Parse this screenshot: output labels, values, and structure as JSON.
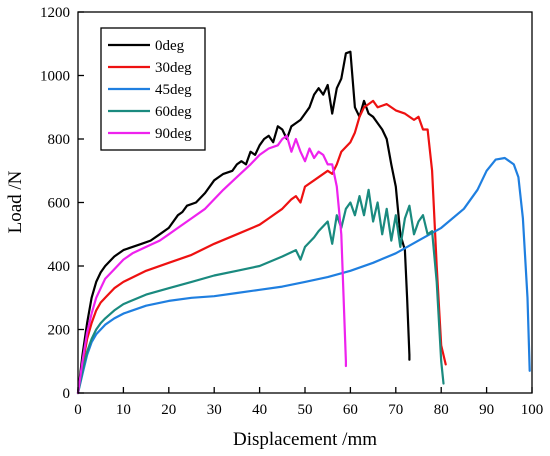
{
  "chart_data": {
    "type": "line",
    "xlabel": "Displacement /mm",
    "ylabel": "Load /N",
    "xlim": [
      0,
      100
    ],
    "ylim": [
      0,
      1200
    ],
    "xticks": [
      "0",
      "10",
      "20",
      "30",
      "40",
      "50",
      "60",
      "70",
      "80",
      "90",
      "100"
    ],
    "yticks": [
      "0",
      "200",
      "400",
      "600",
      "800",
      "1000",
      "1200"
    ],
    "grid": false,
    "legend_position": "top-left",
    "series": [
      {
        "name": "0deg",
        "color": "#000000",
        "points": [
          [
            0,
            0
          ],
          [
            1,
            120
          ],
          [
            2,
            220
          ],
          [
            3,
            300
          ],
          [
            4,
            350
          ],
          [
            5,
            380
          ],
          [
            6,
            400
          ],
          [
            8,
            430
          ],
          [
            10,
            450
          ],
          [
            12,
            460
          ],
          [
            14,
            470
          ],
          [
            16,
            480
          ],
          [
            18,
            500
          ],
          [
            20,
            520
          ],
          [
            22,
            560
          ],
          [
            23,
            570
          ],
          [
            24,
            590
          ],
          [
            26,
            600
          ],
          [
            28,
            630
          ],
          [
            30,
            670
          ],
          [
            31,
            680
          ],
          [
            32,
            690
          ],
          [
            34,
            700
          ],
          [
            35,
            720
          ],
          [
            36,
            730
          ],
          [
            37,
            720
          ],
          [
            38,
            760
          ],
          [
            39,
            750
          ],
          [
            40,
            780
          ],
          [
            41,
            800
          ],
          [
            42,
            810
          ],
          [
            43,
            790
          ],
          [
            44,
            840
          ],
          [
            45,
            830
          ],
          [
            46,
            800
          ],
          [
            47,
            840
          ],
          [
            48,
            850
          ],
          [
            49,
            860
          ],
          [
            50,
            880
          ],
          [
            51,
            900
          ],
          [
            52,
            940
          ],
          [
            53,
            960
          ],
          [
            54,
            940
          ],
          [
            55,
            970
          ],
          [
            56,
            880
          ],
          [
            57,
            960
          ],
          [
            58,
            990
          ],
          [
            59,
            1070
          ],
          [
            60,
            1075
          ],
          [
            61,
            900
          ],
          [
            62,
            870
          ],
          [
            63,
            920
          ],
          [
            64,
            880
          ],
          [
            65,
            870
          ],
          [
            66,
            850
          ],
          [
            67,
            830
          ],
          [
            68,
            800
          ],
          [
            69,
            720
          ],
          [
            70,
            650
          ],
          [
            71,
            500
          ],
          [
            72,
            450
          ],
          [
            72.5,
            300
          ],
          [
            73,
            120
          ],
          [
            73,
            105
          ]
        ]
      },
      {
        "name": "30deg",
        "color": "#ee1111",
        "points": [
          [
            0,
            0
          ],
          [
            1,
            90
          ],
          [
            2,
            170
          ],
          [
            3,
            220
          ],
          [
            4,
            260
          ],
          [
            5,
            285
          ],
          [
            6,
            300
          ],
          [
            8,
            330
          ],
          [
            10,
            350
          ],
          [
            15,
            385
          ],
          [
            20,
            410
          ],
          [
            25,
            435
          ],
          [
            30,
            470
          ],
          [
            35,
            500
          ],
          [
            40,
            530
          ],
          [
            42,
            550
          ],
          [
            45,
            580
          ],
          [
            47,
            610
          ],
          [
            48,
            620
          ],
          [
            49,
            600
          ],
          [
            50,
            650
          ],
          [
            52,
            670
          ],
          [
            55,
            700
          ],
          [
            56,
            690
          ],
          [
            57,
            720
          ],
          [
            58,
            760
          ],
          [
            60,
            790
          ],
          [
            61,
            820
          ],
          [
            62,
            870
          ],
          [
            63,
            900
          ],
          [
            64,
            910
          ],
          [
            65,
            920
          ],
          [
            66,
            900
          ],
          [
            68,
            910
          ],
          [
            70,
            890
          ],
          [
            72,
            880
          ],
          [
            74,
            860
          ],
          [
            75,
            870
          ],
          [
            76,
            830
          ],
          [
            77,
            830
          ],
          [
            78,
            700
          ],
          [
            79,
            400
          ],
          [
            80,
            150
          ],
          [
            81,
            90
          ]
        ]
      },
      {
        "name": "45deg",
        "color": "#1f7fe0",
        "points": [
          [
            0,
            0
          ],
          [
            1,
            60
          ],
          [
            2,
            120
          ],
          [
            3,
            160
          ],
          [
            4,
            185
          ],
          [
            5,
            200
          ],
          [
            6,
            215
          ],
          [
            8,
            235
          ],
          [
            10,
            250
          ],
          [
            15,
            275
          ],
          [
            20,
            290
          ],
          [
            25,
            300
          ],
          [
            30,
            305
          ],
          [
            35,
            315
          ],
          [
            40,
            325
          ],
          [
            45,
            335
          ],
          [
            50,
            350
          ],
          [
            55,
            365
          ],
          [
            60,
            385
          ],
          [
            65,
            410
          ],
          [
            70,
            440
          ],
          [
            75,
            480
          ],
          [
            80,
            520
          ],
          [
            85,
            580
          ],
          [
            88,
            640
          ],
          [
            90,
            700
          ],
          [
            92,
            735
          ],
          [
            94,
            740
          ],
          [
            96,
            720
          ],
          [
            97,
            680
          ],
          [
            98,
            550
          ],
          [
            99,
            300
          ],
          [
            99.5,
            70
          ]
        ]
      },
      {
        "name": "60deg",
        "color": "#1a8a7f",
        "points": [
          [
            0,
            0
          ],
          [
            1,
            70
          ],
          [
            2,
            130
          ],
          [
            3,
            170
          ],
          [
            4,
            200
          ],
          [
            5,
            220
          ],
          [
            6,
            235
          ],
          [
            8,
            260
          ],
          [
            10,
            280
          ],
          [
            15,
            310
          ],
          [
            20,
            330
          ],
          [
            25,
            350
          ],
          [
            30,
            370
          ],
          [
            35,
            385
          ],
          [
            40,
            400
          ],
          [
            45,
            430
          ],
          [
            48,
            450
          ],
          [
            49,
            420
          ],
          [
            50,
            460
          ],
          [
            52,
            490
          ],
          [
            53,
            510
          ],
          [
            55,
            540
          ],
          [
            56,
            470
          ],
          [
            57,
            560
          ],
          [
            58,
            520
          ],
          [
            59,
            580
          ],
          [
            60,
            600
          ],
          [
            61,
            560
          ],
          [
            62,
            620
          ],
          [
            63,
            560
          ],
          [
            64,
            640
          ],
          [
            65,
            540
          ],
          [
            66,
            600
          ],
          [
            67,
            500
          ],
          [
            68,
            580
          ],
          [
            69,
            480
          ],
          [
            70,
            560
          ],
          [
            71,
            460
          ],
          [
            72,
            550
          ],
          [
            73,
            590
          ],
          [
            74,
            500
          ],
          [
            75,
            540
          ],
          [
            76,
            560
          ],
          [
            77,
            500
          ],
          [
            78,
            510
          ],
          [
            79,
            350
          ],
          [
            80,
            100
          ],
          [
            80.5,
            30
          ]
        ]
      },
      {
        "name": "90deg",
        "color": "#ee22ee",
        "points": [
          [
            0,
            0
          ],
          [
            1,
            100
          ],
          [
            2,
            190
          ],
          [
            3,
            250
          ],
          [
            4,
            300
          ],
          [
            5,
            330
          ],
          [
            6,
            360
          ],
          [
            8,
            390
          ],
          [
            10,
            420
          ],
          [
            12,
            440
          ],
          [
            15,
            460
          ],
          [
            18,
            480
          ],
          [
            20,
            500
          ],
          [
            22,
            520
          ],
          [
            25,
            550
          ],
          [
            28,
            580
          ],
          [
            30,
            610
          ],
          [
            32,
            640
          ],
          [
            35,
            680
          ],
          [
            38,
            720
          ],
          [
            40,
            750
          ],
          [
            42,
            770
          ],
          [
            44,
            780
          ],
          [
            45,
            800
          ],
          [
            46,
            810
          ],
          [
            47,
            760
          ],
          [
            48,
            800
          ],
          [
            49,
            760
          ],
          [
            50,
            730
          ],
          [
            51,
            770
          ],
          [
            52,
            740
          ],
          [
            53,
            760
          ],
          [
            54,
            750
          ],
          [
            55,
            720
          ],
          [
            56,
            720
          ],
          [
            57,
            650
          ],
          [
            58,
            500
          ],
          [
            58.5,
            300
          ],
          [
            59,
            100
          ],
          [
            59,
            85
          ]
        ]
      }
    ]
  }
}
